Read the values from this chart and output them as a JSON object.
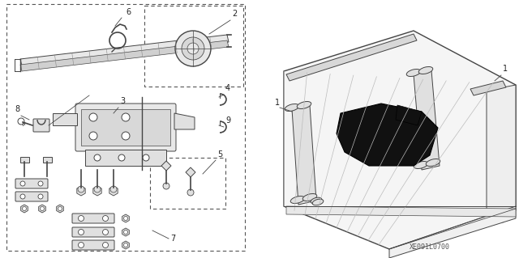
{
  "figure_code": "XE091L0700",
  "background_color": "#ffffff",
  "figsize": [
    6.4,
    3.19
  ],
  "dpi": 100
}
